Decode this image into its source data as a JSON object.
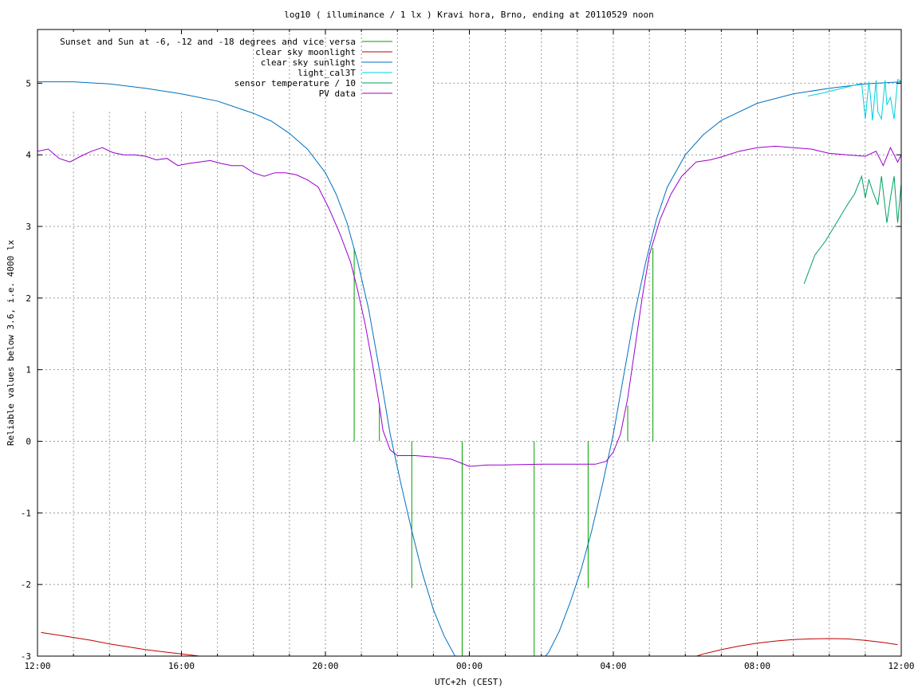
{
  "chart_data": {
    "type": "line",
    "title": "log10 ( illuminance / 1 lx ) Kravi hora, Brno, ending at 20110529 noon",
    "xlabel": "UTC+2h (CEST)",
    "ylabel": "Reliable values below 3.6, i.e. 4000 lx",
    "xlim": [
      0,
      24
    ],
    "ylim": [
      -3,
      5.75
    ],
    "x_unit": "hours after 12:00",
    "x_ticks": [
      {
        "value": 0,
        "label": "12:00"
      },
      {
        "value": 4,
        "label": "16:00"
      },
      {
        "value": 8,
        "label": "20:00"
      },
      {
        "value": 12,
        "label": "00:00"
      },
      {
        "value": 16,
        "label": "04:00"
      },
      {
        "value": 20,
        "label": "08:00"
      },
      {
        "value": 24,
        "label": "12:00"
      }
    ],
    "y_ticks": [
      {
        "value": -3,
        "label": "-3"
      },
      {
        "value": -2,
        "label": "-2"
      },
      {
        "value": -1,
        "label": "-1"
      },
      {
        "value": 0,
        "label": "0"
      },
      {
        "value": 1,
        "label": "1"
      },
      {
        "value": 2,
        "label": "2"
      },
      {
        "value": 3,
        "label": "3"
      },
      {
        "value": 4,
        "label": "4"
      },
      {
        "value": 5,
        "label": "5"
      }
    ],
    "grid": true,
    "legend_position": "top-left",
    "series": [
      {
        "name": "Sunset and Sun at -6, -12 and -18 degrees and vice versa",
        "color": "#00a000",
        "style": "impulses",
        "x": [
          8.8,
          9.5,
          10.4,
          11.8,
          13.8,
          15.3,
          16.4,
          17.1
        ],
        "y": [
          2.7,
          0.5,
          -2.05,
          -3,
          -3,
          -2.05,
          0.5,
          2.7
        ]
      },
      {
        "name": "clear sky moonlight",
        "color": "#c00000",
        "style": "line",
        "segments": [
          {
            "x": [
              0.1,
              0.5,
              1.0,
              1.5,
              2.0,
              2.5,
              3.0,
              3.5,
              4.0,
              4.5,
              5.0,
              5.5,
              6.0,
              6.4
            ],
            "y": [
              -2.67,
              -2.7,
              -2.74,
              -2.78,
              -2.83,
              -2.87,
              -2.91,
              -2.94,
              -2.97,
              -3.0,
              -3.03,
              -3.06,
              -3.09,
              -3.1
            ]
          },
          {
            "x": [
              18.0,
              18.5,
              19.0,
              19.5,
              20.0,
              20.5,
              21.0,
              21.5,
              22.0,
              22.5,
              23.0,
              23.5,
              23.9
            ],
            "y": [
              -3.05,
              -2.97,
              -2.91,
              -2.86,
              -2.82,
              -2.79,
              -2.77,
              -2.76,
              -2.755,
              -2.76,
              -2.78,
              -2.81,
              -2.84
            ]
          }
        ]
      },
      {
        "name": "clear sky sunlight",
        "color": "#0070c0",
        "style": "line",
        "x": [
          0,
          1,
          2,
          3,
          4,
          5,
          6,
          6.5,
          7,
          7.5,
          8,
          8.3,
          8.6,
          8.9,
          9.2,
          9.5,
          9.8,
          10.1,
          10.4,
          10.7,
          11.0,
          11.3,
          11.6,
          11.9,
          12.1,
          12.4,
          12.7,
          13.0,
          13.3,
          13.6,
          13.9,
          14.2,
          14.5,
          14.8,
          15.1,
          15.4,
          15.7,
          16.0,
          16.3,
          16.6,
          16.9,
          17.2,
          17.5,
          18.0,
          18.5,
          19,
          20,
          21,
          22,
          23,
          24
        ],
        "y": [
          5.02,
          5.02,
          4.99,
          4.93,
          4.85,
          4.75,
          4.58,
          4.47,
          4.3,
          4.08,
          3.75,
          3.45,
          3.05,
          2.5,
          1.85,
          1.0,
          0.1,
          -0.6,
          -1.25,
          -1.85,
          -2.35,
          -2.72,
          -3.0,
          -3.25,
          -3.35,
          -3.42,
          -3.45,
          -3.44,
          -3.4,
          -3.3,
          -3.12,
          -2.95,
          -2.65,
          -2.25,
          -1.8,
          -1.25,
          -0.6,
          0.1,
          0.95,
          1.8,
          2.5,
          3.1,
          3.55,
          4.0,
          4.28,
          4.48,
          4.72,
          4.85,
          4.93,
          4.99,
          5.02
        ]
      },
      {
        "name": "light_cal3T",
        "color": "#00d0e0",
        "style": "line",
        "x": [
          21.4,
          21.8,
          22.2,
          22.6,
          22.9,
          23.0,
          23.1,
          23.15,
          23.2,
          23.3,
          23.35,
          23.45,
          23.55,
          23.6,
          23.7,
          23.8,
          23.9,
          24.0
        ],
        "y": [
          4.82,
          4.86,
          4.91,
          4.96,
          5.0,
          4.5,
          5.02,
          4.8,
          4.48,
          5.04,
          4.6,
          4.5,
          5.04,
          4.7,
          4.8,
          4.5,
          5.05,
          5.03
        ]
      },
      {
        "name": "sensor temperature / 10",
        "color": "#00a060",
        "style": "line",
        "x": [
          21.3,
          21.6,
          21.9,
          22.2,
          22.5,
          22.7,
          22.9,
          23.0,
          23.1,
          23.2,
          23.35,
          23.45,
          23.6,
          23.7,
          23.8,
          23.9,
          24.0
        ],
        "y": [
          2.2,
          2.6,
          2.8,
          3.05,
          3.3,
          3.45,
          3.7,
          3.4,
          3.65,
          3.5,
          3.3,
          3.7,
          3.05,
          3.4,
          3.7,
          3.05,
          3.6
        ]
      },
      {
        "name": "PV data",
        "color": "#9900cc",
        "style": "line",
        "x": [
          0,
          0.3,
          0.6,
          0.9,
          1.2,
          1.5,
          1.8,
          2.1,
          2.4,
          2.7,
          3.0,
          3.3,
          3.6,
          3.9,
          4.2,
          4.5,
          4.8,
          5.1,
          5.4,
          5.7,
          6.0,
          6.3,
          6.6,
          6.9,
          7.2,
          7.5,
          7.8,
          8.1,
          8.4,
          8.7,
          8.9,
          9.1,
          9.3,
          9.5,
          9.6,
          9.8,
          10.0,
          10.5,
          11.0,
          11.5,
          12.0,
          12.5,
          13.0,
          14.0,
          15.0,
          15.5,
          15.8,
          16.0,
          16.2,
          16.4,
          16.6,
          16.8,
          17.0,
          17.3,
          17.6,
          17.9,
          18.3,
          18.7,
          19.0,
          19.5,
          20.0,
          20.5,
          21.0,
          21.5,
          22.0,
          22.5,
          23.0,
          23.3,
          23.5,
          23.7,
          23.9,
          24.0
        ],
        "y": [
          4.05,
          4.08,
          3.95,
          3.9,
          3.98,
          4.05,
          4.1,
          4.03,
          4.0,
          4.0,
          3.98,
          3.93,
          3.95,
          3.85,
          3.88,
          3.9,
          3.92,
          3.88,
          3.85,
          3.85,
          3.75,
          3.7,
          3.75,
          3.75,
          3.72,
          3.65,
          3.55,
          3.25,
          2.9,
          2.5,
          2.1,
          1.65,
          1.1,
          0.5,
          0.15,
          -0.12,
          -0.2,
          -0.2,
          -0.22,
          -0.25,
          -0.35,
          -0.33,
          -0.33,
          -0.32,
          -0.32,
          -0.32,
          -0.28,
          -0.15,
          0.1,
          0.6,
          1.3,
          2.0,
          2.6,
          3.1,
          3.45,
          3.7,
          3.9,
          3.93,
          3.97,
          4.05,
          4.1,
          4.12,
          4.1,
          4.08,
          4.02,
          4.0,
          3.98,
          4.05,
          3.85,
          4.1,
          3.9,
          4.0
        ]
      }
    ]
  }
}
